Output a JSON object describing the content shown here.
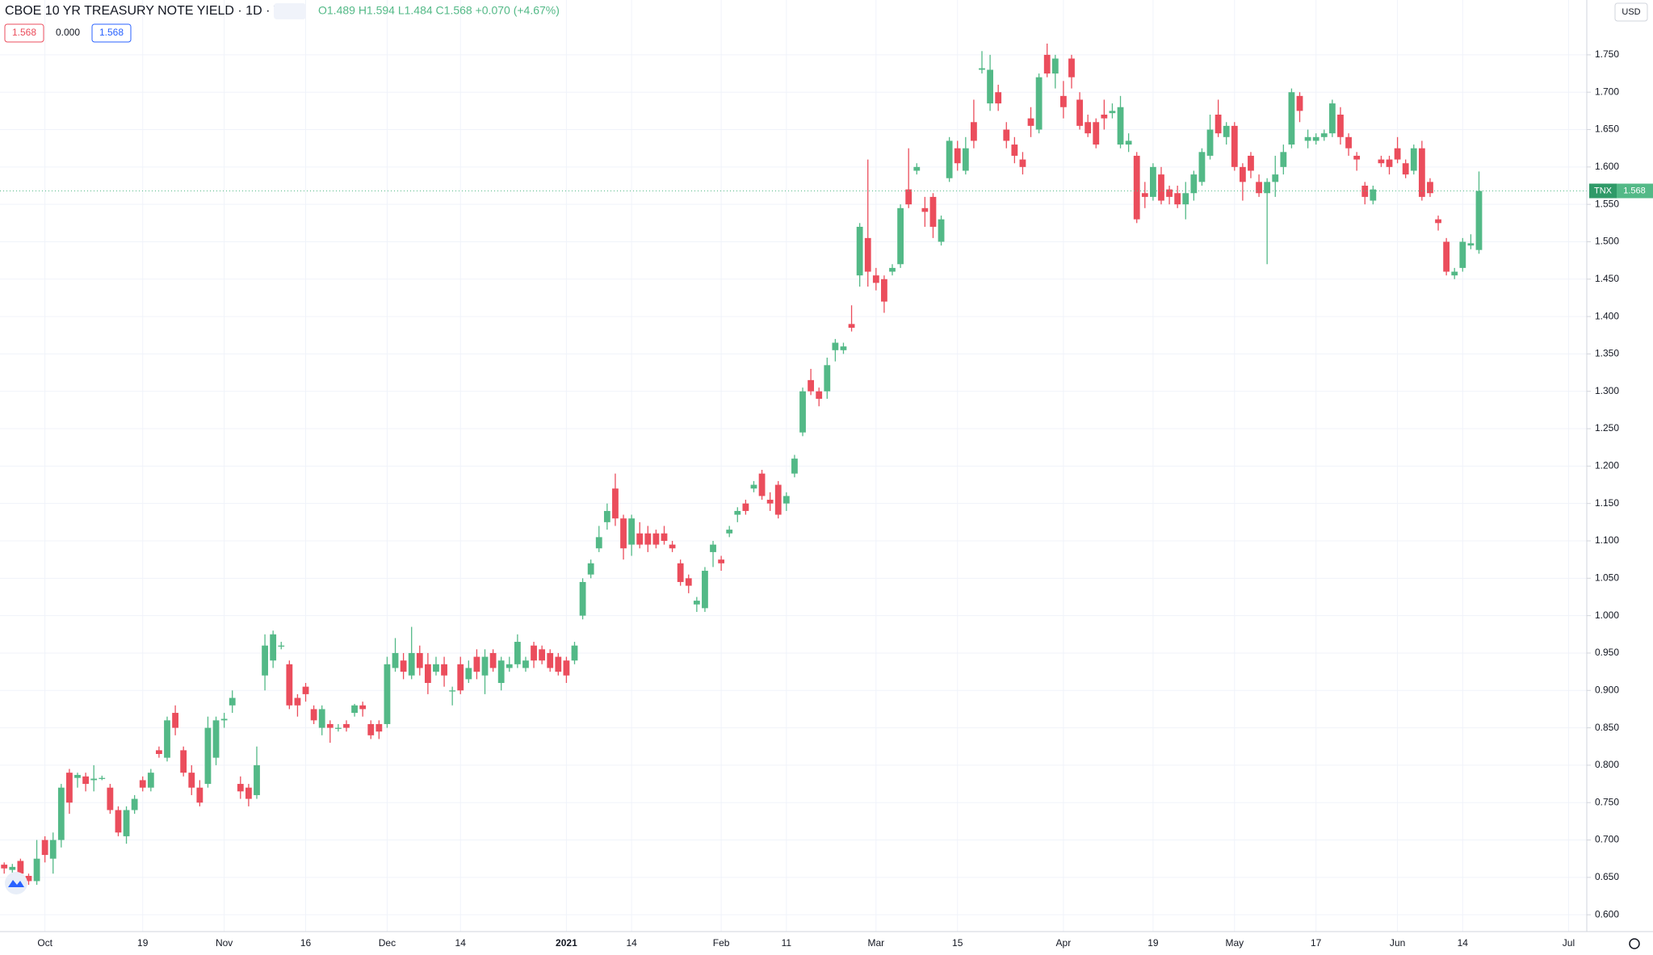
{
  "chart_data": {
    "type": "candlestick",
    "title": "CBOE 10 YR TREASURY NOTE YIELD · 1D · TVC",
    "legend_text": "O1.489 H1.594 L1.484 C1.568 +0.070 (+4.67%)",
    "badges": [
      "1.568",
      "0.000",
      "1.568"
    ],
    "currency": "USD",
    "price_tag": {
      "symbol": "TNX",
      "value": "1.568"
    },
    "up_color": "#53b987",
    "down_color": "#eb4d5c",
    "grid": true,
    "ylim": [
      0.5775,
      1.8233
    ],
    "yticks": [
      {
        "value": 0.6,
        "label": "0.600"
      },
      {
        "value": 0.65,
        "label": "0.650"
      },
      {
        "value": 0.7,
        "label": "0.700"
      },
      {
        "value": 0.75,
        "label": "0.750"
      },
      {
        "value": 0.8,
        "label": "0.800"
      },
      {
        "value": 0.85,
        "label": "0.850"
      },
      {
        "value": 0.9,
        "label": "0.900"
      },
      {
        "value": 0.95,
        "label": "0.950"
      },
      {
        "value": 1.0,
        "label": "1.000"
      },
      {
        "value": 1.05,
        "label": "1.050"
      },
      {
        "value": 1.1,
        "label": "1.100"
      },
      {
        "value": 1.15,
        "label": "1.150"
      },
      {
        "value": 1.2,
        "label": "1.200"
      },
      {
        "value": 1.25,
        "label": "1.250"
      },
      {
        "value": 1.3,
        "label": "1.300"
      },
      {
        "value": 1.35,
        "label": "1.350"
      },
      {
        "value": 1.4,
        "label": "1.400"
      },
      {
        "value": 1.45,
        "label": "1.450"
      },
      {
        "value": 1.5,
        "label": "1.500"
      },
      {
        "value": 1.55,
        "label": "1.550"
      },
      {
        "value": 1.6,
        "label": "1.600"
      },
      {
        "value": 1.65,
        "label": "1.650"
      },
      {
        "value": 1.7,
        "label": "1.700"
      },
      {
        "value": 1.75,
        "label": "1.750"
      }
    ],
    "categories": [
      null,
      null,
      null,
      null,
      null,
      "Oct",
      null,
      null,
      null,
      null,
      null,
      null,
      null,
      null,
      null,
      null,
      null,
      "19",
      null,
      null,
      null,
      null,
      null,
      null,
      null,
      null,
      null,
      "Nov",
      null,
      null,
      null,
      null,
      null,
      null,
      null,
      null,
      null,
      "16",
      null,
      null,
      null,
      null,
      null,
      null,
      null,
      null,
      null,
      "Dec",
      null,
      null,
      null,
      null,
      null,
      null,
      null,
      null,
      "14",
      null,
      null,
      null,
      null,
      null,
      null,
      null,
      null,
      null,
      null,
      null,
      null,
      "2021",
      null,
      null,
      null,
      null,
      null,
      null,
      null,
      "14",
      null,
      null,
      null,
      null,
      null,
      null,
      null,
      null,
      null,
      null,
      "Feb",
      null,
      null,
      null,
      null,
      null,
      null,
      null,
      "11",
      null,
      null,
      null,
      null,
      null,
      null,
      null,
      null,
      null,
      null,
      "Mar",
      null,
      null,
      null,
      null,
      null,
      null,
      null,
      null,
      null,
      "15",
      null,
      null,
      null,
      null,
      null,
      null,
      null,
      null,
      null,
      null,
      null,
      null,
      "Apr",
      null,
      null,
      null,
      null,
      null,
      null,
      null,
      null,
      null,
      null,
      "19",
      null,
      null,
      null,
      null,
      null,
      null,
      null,
      null,
      null,
      "May",
      null,
      null,
      null,
      null,
      null,
      null,
      null,
      null,
      null,
      "17",
      null,
      null,
      null,
      null,
      null,
      null,
      null,
      null,
      null,
      "Jun",
      null,
      null,
      null,
      null,
      null,
      null,
      null,
      "14",
      null,
      null,
      null,
      null,
      null,
      null,
      null,
      null,
      null,
      null,
      null,
      null,
      "Jul",
      null,
      null
    ],
    "open": [
      0.667,
      0.66,
      0.672,
      0.652,
      0.645,
      0.7,
      0.675,
      0.7,
      0.79,
      0.783,
      0.785,
      0.78,
      0.783,
      0.77,
      0.74,
      0.705,
      0.74,
      0.78,
      0.77,
      0.82,
      0.81,
      0.87,
      0.82,
      0.79,
      0.77,
      0.775,
      0.81,
      0.86,
      0.88,
      0.775,
      0.77,
      0.76,
      0.92,
      0.94,
      0.96,
      0.935,
      0.89,
      0.905,
      0.875,
      0.85,
      0.855,
      0.85,
      0.855,
      0.87,
      0.88,
      0.855,
      0.855,
      0.855,
      0.93,
      0.94,
      0.92,
      0.95,
      0.935,
      0.925,
      0.935,
      0.9,
      0.935,
      0.915,
      0.945,
      0.92,
      0.95,
      0.91,
      0.93,
      0.935,
      0.93,
      0.96,
      0.955,
      0.95,
      0.945,
      0.94,
      0.94,
      1.0,
      1.055,
      1.09,
      1.125,
      1.17,
      1.13,
      1.095,
      1.11,
      1.11,
      1.11,
      1.11,
      1.095,
      1.07,
      1.05,
      1.015,
      1.01,
      1.085,
      1.075,
      1.11,
      1.135,
      1.15,
      1.17,
      1.19,
      1.155,
      1.175,
      1.15,
      1.19,
      1.245,
      1.315,
      1.3,
      1.3,
      1.355,
      1.355,
      1.39,
      1.455,
      1.505,
      1.455,
      1.45,
      1.46,
      1.47,
      1.57,
      1.595,
      1.545,
      1.56,
      1.5,
      1.585,
      1.625,
      1.595,
      1.66,
      1.73,
      1.685,
      1.7,
      1.65,
      1.63,
      1.61,
      1.665,
      1.65,
      1.75,
      1.725,
      1.695,
      1.745,
      1.69,
      1.66,
      1.66,
      1.67,
      1.672,
      1.63,
      1.63,
      1.615,
      1.565,
      1.56,
      1.59,
      1.57,
      1.565,
      1.55,
      1.565,
      1.58,
      1.615,
      1.67,
      1.64,
      1.655,
      1.6,
      1.615,
      1.58,
      1.565,
      1.58,
      1.6,
      1.63,
      1.695,
      1.635,
      1.635,
      1.64,
      1.645,
      1.67,
      1.64,
      1.615,
      1.575,
      1.555,
      1.61,
      1.61,
      1.625,
      1.605,
      1.595,
      1.625,
      1.58,
      1.53,
      1.5,
      1.455,
      1.465,
      1.495,
      1.489,
      null,
      null,
      null,
      null,
      null,
      null,
      null,
      null,
      null,
      null,
      null,
      null,
      null
    ],
    "high": [
      0.67,
      0.668,
      0.675,
      0.655,
      0.7,
      0.705,
      0.71,
      0.775,
      0.795,
      0.79,
      0.79,
      0.8,
      0.786,
      0.775,
      0.745,
      0.745,
      0.76,
      0.785,
      0.795,
      0.825,
      0.865,
      0.88,
      0.825,
      0.8,
      0.78,
      0.865,
      0.865,
      0.87,
      0.9,
      0.785,
      0.775,
      0.825,
      0.975,
      0.98,
      0.965,
      0.94,
      0.895,
      0.91,
      0.88,
      0.88,
      0.86,
      0.855,
      0.86,
      0.882,
      0.885,
      0.86,
      0.86,
      0.945,
      0.97,
      0.95,
      0.985,
      0.96,
      0.95,
      0.945,
      0.945,
      0.905,
      0.945,
      0.94,
      0.955,
      0.955,
      0.955,
      0.945,
      0.945,
      0.975,
      0.945,
      0.965,
      0.96,
      0.955,
      0.95,
      0.945,
      0.965,
      1.05,
      1.075,
      1.12,
      1.15,
      1.19,
      1.135,
      1.135,
      1.125,
      1.12,
      1.115,
      1.12,
      1.1,
      1.075,
      1.055,
      1.025,
      1.065,
      1.1,
      1.08,
      1.12,
      1.145,
      1.155,
      1.18,
      1.195,
      1.165,
      1.18,
      1.165,
      1.215,
      1.305,
      1.33,
      1.305,
      1.345,
      1.37,
      1.365,
      1.415,
      1.525,
      1.61,
      1.465,
      1.455,
      1.47,
      1.55,
      1.625,
      1.605,
      1.56,
      1.565,
      1.535,
      1.64,
      1.635,
      1.64,
      1.69,
      1.755,
      1.75,
      1.71,
      1.66,
      1.64,
      1.62,
      1.68,
      1.725,
      1.765,
      1.75,
      1.715,
      1.75,
      1.7,
      1.67,
      1.665,
      1.69,
      1.685,
      1.695,
      1.645,
      1.62,
      1.58,
      1.605,
      1.6,
      1.575,
      1.575,
      1.58,
      1.595,
      1.625,
      1.67,
      1.69,
      1.66,
      1.66,
      1.605,
      1.62,
      1.59,
      1.585,
      1.615,
      1.63,
      1.705,
      1.7,
      1.65,
      1.645,
      1.65,
      1.69,
      1.68,
      1.645,
      1.62,
      1.58,
      1.575,
      1.615,
      1.615,
      1.64,
      1.61,
      1.63,
      1.635,
      1.585,
      1.535,
      1.505,
      1.465,
      1.505,
      1.51,
      1.594,
      null,
      null,
      null,
      null,
      null,
      null,
      null,
      null,
      null,
      null,
      null,
      null,
      null
    ],
    "low": [
      0.655,
      0.655,
      0.65,
      0.64,
      0.64,
      0.67,
      0.655,
      0.69,
      0.735,
      0.77,
      0.765,
      0.765,
      0.78,
      0.735,
      0.705,
      0.695,
      0.735,
      0.765,
      0.765,
      0.81,
      0.805,
      0.84,
      0.785,
      0.76,
      0.745,
      0.77,
      0.8,
      0.85,
      0.87,
      0.755,
      0.745,
      0.755,
      0.9,
      0.93,
      0.955,
      0.875,
      0.865,
      0.885,
      0.855,
      0.84,
      0.83,
      0.845,
      0.845,
      0.865,
      0.865,
      0.835,
      0.835,
      0.85,
      0.925,
      0.915,
      0.915,
      0.92,
      0.895,
      0.92,
      0.905,
      0.88,
      0.895,
      0.91,
      0.915,
      0.895,
      0.925,
      0.9,
      0.925,
      0.93,
      0.925,
      0.93,
      0.935,
      0.925,
      0.92,
      0.91,
      0.935,
      0.995,
      1.05,
      1.085,
      1.115,
      1.12,
      1.075,
      1.08,
      1.09,
      1.085,
      1.09,
      1.095,
      1.085,
      1.04,
      1.03,
      1.005,
      1.005,
      1.065,
      1.06,
      1.105,
      1.125,
      1.135,
      1.165,
      1.155,
      1.14,
      1.13,
      1.14,
      1.185,
      1.24,
      1.295,
      1.28,
      1.29,
      1.34,
      1.35,
      1.38,
      1.44,
      1.44,
      1.435,
      1.405,
      1.455,
      1.465,
      1.545,
      1.59,
      1.52,
      1.505,
      1.495,
      1.58,
      1.595,
      1.59,
      1.625,
      1.725,
      1.675,
      1.675,
      1.625,
      1.605,
      1.59,
      1.64,
      1.645,
      1.72,
      1.705,
      1.665,
      1.705,
      1.65,
      1.64,
      1.625,
      1.65,
      1.665,
      1.625,
      1.62,
      1.525,
      1.545,
      1.555,
      1.55,
      1.55,
      1.545,
      1.53,
      1.555,
      1.575,
      1.61,
      1.64,
      1.63,
      1.595,
      1.555,
      1.585,
      1.56,
      1.47,
      1.56,
      1.59,
      1.625,
      1.66,
      1.625,
      1.63,
      1.635,
      1.64,
      1.63,
      1.615,
      1.595,
      1.55,
      1.55,
      1.6,
      1.59,
      1.605,
      1.585,
      1.59,
      1.555,
      1.56,
      1.515,
      1.455,
      1.45,
      1.46,
      1.49,
      1.484,
      null,
      null,
      null,
      null,
      null,
      null,
      null,
      null,
      null,
      null,
      null,
      null,
      null
    ],
    "close": [
      0.662,
      0.664,
      0.655,
      0.645,
      0.675,
      0.68,
      0.7,
      0.77,
      0.75,
      0.787,
      0.775,
      0.782,
      0.783,
      0.74,
      0.71,
      0.74,
      0.755,
      0.77,
      0.79,
      0.815,
      0.86,
      0.85,
      0.79,
      0.77,
      0.75,
      0.85,
      0.86,
      0.862,
      0.89,
      0.765,
      0.755,
      0.8,
      0.96,
      0.975,
      0.96,
      0.88,
      0.88,
      0.895,
      0.86,
      0.875,
      0.85,
      0.85,
      0.85,
      0.88,
      0.875,
      0.84,
      0.845,
      0.935,
      0.95,
      0.925,
      0.95,
      0.93,
      0.91,
      0.935,
      0.92,
      0.9,
      0.9,
      0.93,
      0.925,
      0.945,
      0.93,
      0.94,
      0.935,
      0.965,
      0.94,
      0.94,
      0.94,
      0.93,
      0.925,
      0.92,
      0.96,
      1.045,
      1.07,
      1.105,
      1.14,
      1.13,
      1.09,
      1.13,
      1.095,
      1.095,
      1.095,
      1.1,
      1.09,
      1.045,
      1.04,
      1.02,
      1.06,
      1.095,
      1.07,
      1.115,
      1.14,
      1.14,
      1.175,
      1.16,
      1.15,
      1.135,
      1.16,
      1.21,
      1.3,
      1.3,
      1.29,
      1.335,
      1.365,
      1.36,
      1.385,
      1.52,
      1.46,
      1.445,
      1.42,
      1.465,
      1.545,
      1.55,
      1.6,
      1.54,
      1.52,
      1.53,
      1.635,
      1.605,
      1.625,
      1.635,
      1.732,
      1.73,
      1.685,
      1.635,
      1.615,
      1.6,
      1.655,
      1.72,
      1.725,
      1.745,
      1.68,
      1.72,
      1.655,
      1.645,
      1.63,
      1.665,
      1.675,
      1.68,
      1.635,
      1.53,
      1.56,
      1.6,
      1.555,
      1.56,
      1.55,
      1.565,
      1.59,
      1.62,
      1.65,
      1.645,
      1.655,
      1.6,
      1.58,
      1.595,
      1.565,
      1.58,
      1.59,
      1.62,
      1.7,
      1.675,
      1.64,
      1.64,
      1.645,
      1.685,
      1.64,
      1.625,
      1.61,
      1.56,
      1.57,
      1.605,
      1.6,
      1.61,
      1.59,
      1.625,
      1.56,
      1.565,
      1.525,
      1.46,
      1.46,
      1.5,
      1.498,
      1.568,
      null,
      null,
      null,
      null,
      null,
      null,
      null,
      null,
      null,
      null,
      null,
      null,
      null
    ]
  }
}
